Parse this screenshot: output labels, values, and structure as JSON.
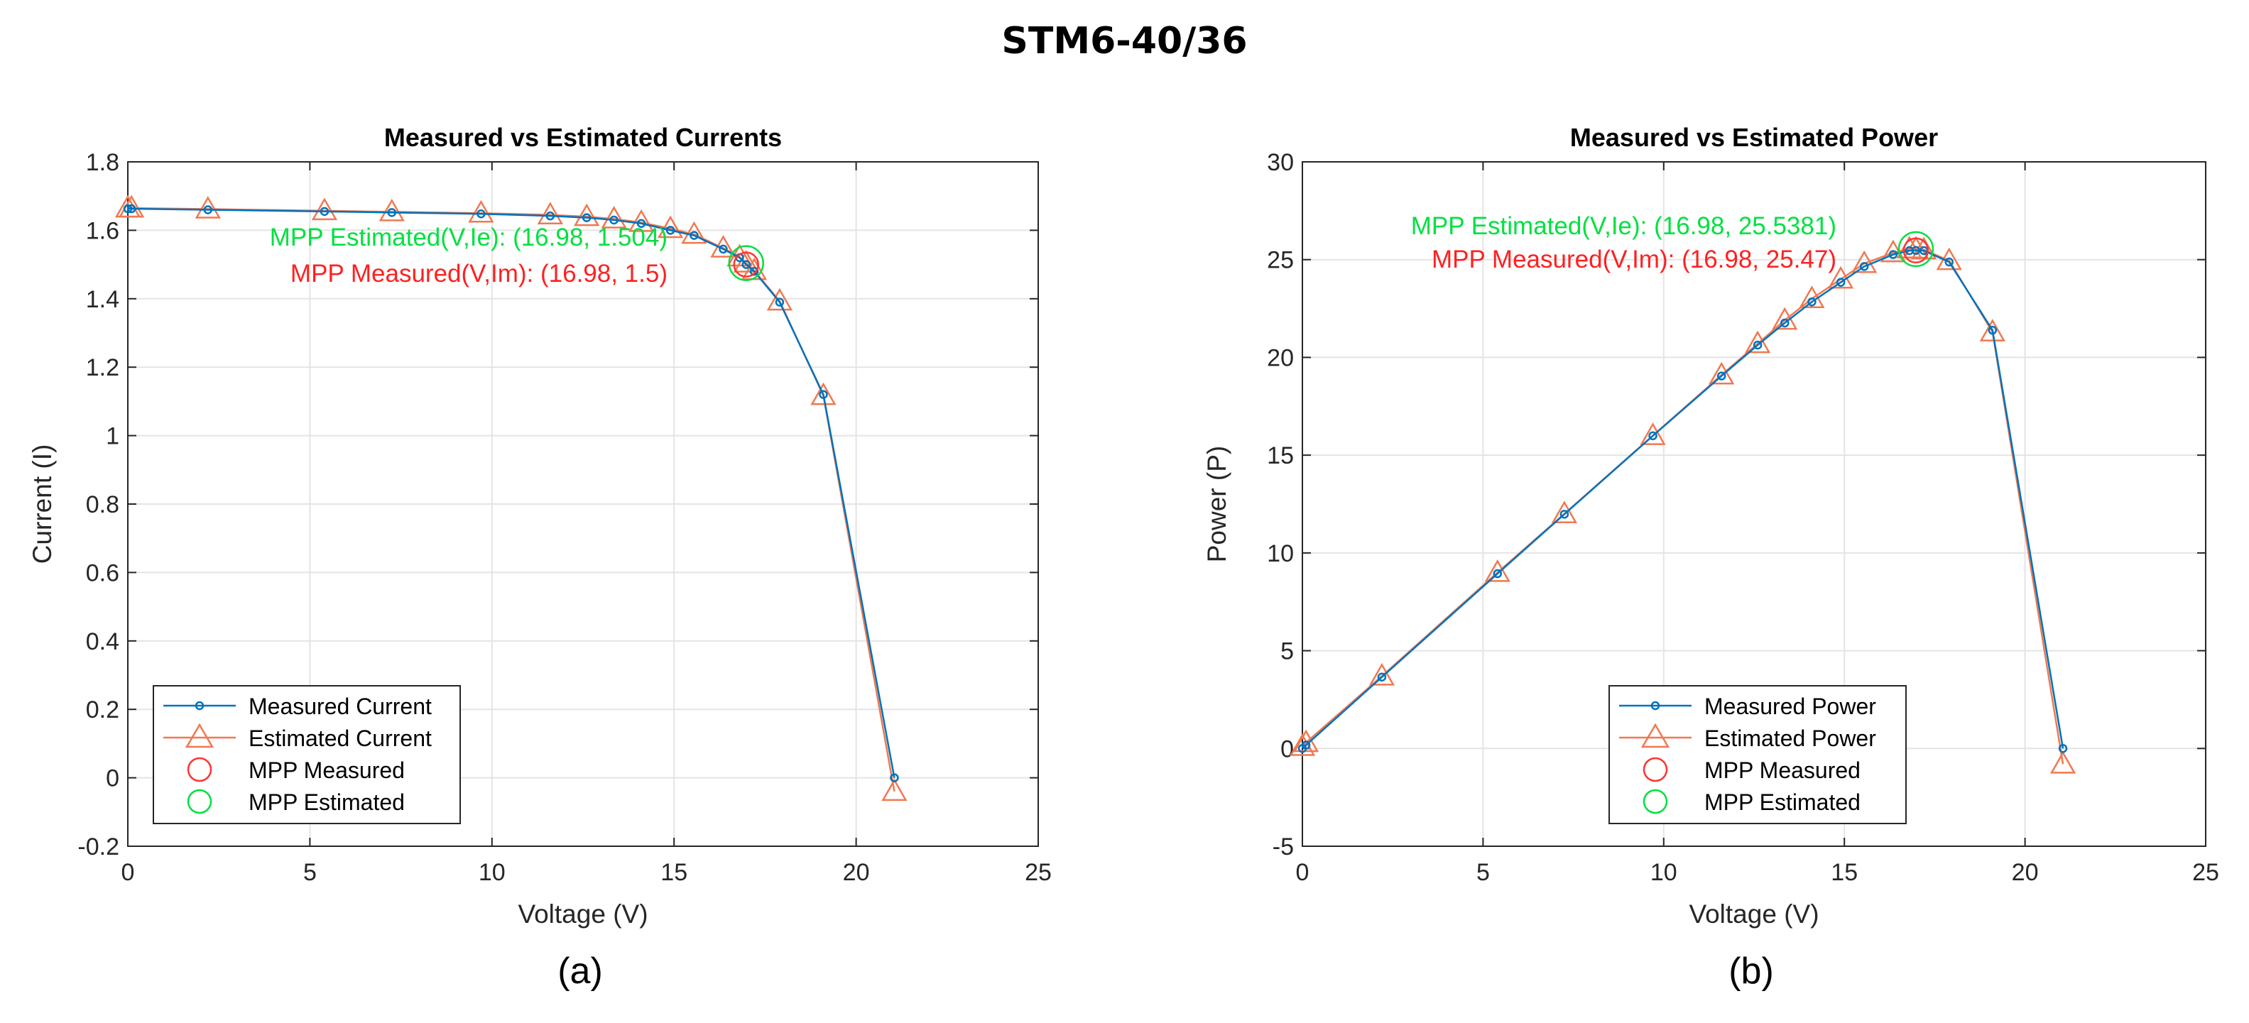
{
  "figure": {
    "title": "STM6-40/36"
  },
  "chart_data": [
    {
      "type": "line",
      "panel_label": "(a)",
      "title": "Measured vs Estimated Currents",
      "xlabel": "Voltage (V)",
      "ylabel": "Current (I)",
      "xlim": [
        0,
        25
      ],
      "ylim": [
        -0.2,
        1.8
      ],
      "xticks": [
        0,
        5,
        10,
        15,
        20,
        25
      ],
      "yticks": [
        -0.2,
        0,
        0.2,
        0.4,
        0.6,
        0.8,
        1,
        1.2,
        1.4,
        1.6,
        1.8
      ],
      "grid": true,
      "legend_position": "bottom-left",
      "series": [
        {
          "name": "Measured Current",
          "color": "#0072BD",
          "marker": "circle",
          "x": [
            0,
            0.1,
            2.2,
            5.4,
            7.25,
            9.7,
            11.6,
            12.6,
            13.35,
            14.1,
            14.9,
            15.55,
            16.35,
            16.8,
            16.98,
            17.2,
            17.9,
            19.1,
            21.05
          ],
          "y": [
            1.663,
            1.663,
            1.66,
            1.655,
            1.652,
            1.648,
            1.642,
            1.637,
            1.63,
            1.62,
            1.6,
            1.585,
            1.545,
            1.52,
            1.5,
            1.48,
            1.39,
            1.12,
            0
          ]
        },
        {
          "name": "Estimated Current",
          "color": "#F07850",
          "marker": "triangle",
          "x": [
            0,
            0.1,
            2.2,
            5.4,
            7.25,
            9.7,
            11.6,
            12.6,
            13.35,
            14.1,
            14.9,
            15.55,
            16.35,
            16.8,
            16.98,
            17.2,
            17.9,
            19.1,
            21.05
          ],
          "y": [
            1.665,
            1.665,
            1.662,
            1.657,
            1.654,
            1.65,
            1.645,
            1.64,
            1.633,
            1.623,
            1.605,
            1.588,
            1.548,
            1.522,
            1.504,
            1.482,
            1.393,
            1.117,
            -0.04
          ]
        },
        {
          "name": "MPP Measured",
          "color": "#FF3333",
          "marker": "circle",
          "x": [
            16.98
          ],
          "y": [
            1.5
          ]
        },
        {
          "name": "MPP Estimated",
          "color": "#00E040",
          "marker": "circle",
          "x": [
            16.98
          ],
          "y": [
            1.504
          ]
        }
      ],
      "annotations": [
        {
          "text": "MPP Estimated(V,Ie): (16.98, 1.504)",
          "color": "#00E040"
        },
        {
          "text": "MPP Measured(V,Im): (16.98, 1.5)",
          "color": "#FF2020"
        }
      ]
    },
    {
      "type": "line",
      "panel_label": "(b)",
      "title": "Measured vs Estimated Power",
      "xlabel": "Voltage (V)",
      "ylabel": "Power (P)",
      "xlim": [
        0,
        25
      ],
      "ylim": [
        -5,
        30
      ],
      "xticks": [
        0,
        5,
        10,
        15,
        20,
        25
      ],
      "yticks": [
        -5,
        0,
        5,
        10,
        15,
        20,
        25,
        30
      ],
      "grid": true,
      "legend_position": "bottom-center",
      "series": [
        {
          "name": "Measured Power",
          "color": "#0072BD",
          "marker": "circle",
          "x": [
            0,
            0.1,
            2.2,
            5.4,
            7.25,
            9.7,
            11.6,
            12.6,
            13.35,
            14.1,
            14.9,
            15.55,
            16.35,
            16.8,
            16.98,
            17.2,
            17.9,
            19.1,
            21.05
          ],
          "y": [
            0,
            0.17,
            3.65,
            8.94,
            11.98,
            15.99,
            19.05,
            20.63,
            21.76,
            22.84,
            23.84,
            24.65,
            25.26,
            25.46,
            25.47,
            25.46,
            24.88,
            21.39,
            0
          ]
        },
        {
          "name": "Estimated Power",
          "color": "#F07850",
          "marker": "triangle",
          "x": [
            0,
            0.1,
            2.2,
            5.4,
            7.25,
            9.7,
            11.6,
            12.6,
            13.35,
            14.1,
            14.9,
            15.55,
            16.35,
            16.8,
            16.98,
            17.2,
            17.9,
            19.1,
            21.05
          ],
          "y": [
            0.1,
            0.3,
            3.7,
            9.0,
            12.0,
            16.0,
            19.1,
            20.7,
            21.9,
            23.0,
            24.0,
            24.8,
            25.35,
            25.55,
            25.54,
            25.5,
            24.95,
            21.3,
            -0.8
          ]
        },
        {
          "name": "MPP Measured",
          "color": "#FF3333",
          "marker": "circle",
          "x": [
            16.98
          ],
          "y": [
            25.47
          ]
        },
        {
          "name": "MPP Estimated",
          "color": "#00E040",
          "marker": "circle",
          "x": [
            16.98
          ],
          "y": [
            25.5381
          ]
        }
      ],
      "annotations": [
        {
          "text": "MPP Estimated(V,Ie): (16.98, 25.5381)",
          "color": "#00E040"
        },
        {
          "text": "MPP Measured(V,Im): (16.98, 25.47)",
          "color": "#FF2020"
        }
      ]
    }
  ]
}
